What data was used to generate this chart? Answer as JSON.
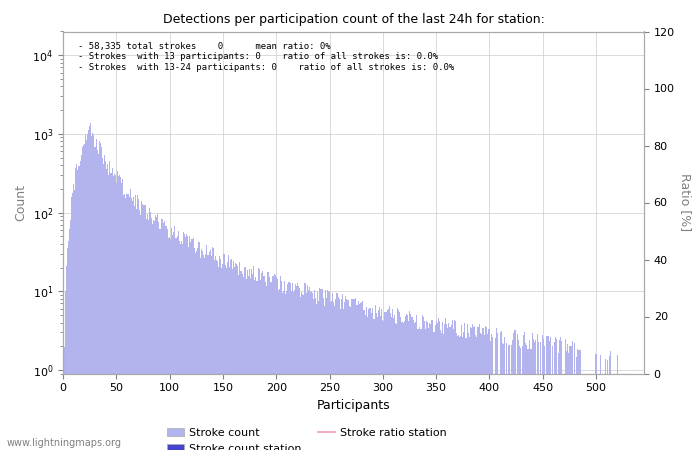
{
  "title": "Detections per participation count of the last 24h for station:",
  "xlabel": "Participants",
  "ylabel_left": "Count",
  "ylabel_right": "Ratio [%]",
  "annotation_lines": [
    "- 58,335 total strokes    0      mean ratio: 0%",
    "- Strokes  with 13 participants: 0    ratio of all strokes is: 0.0%",
    "- Strokes  with 13-24 participants: 0    ratio of all strokes is: 0.0%"
  ],
  "bar_color": "#b3b3ee",
  "station_bar_color": "#4444cc",
  "ratio_line_color": "#ee99bb",
  "background_color": "#ffffff",
  "grid_color": "#cccccc",
  "watermark": "www.lightningmaps.org",
  "xlim": [
    0,
    545
  ],
  "xticks": [
    0,
    50,
    100,
    150,
    200,
    250,
    300,
    350,
    400,
    450,
    500
  ],
  "ylim_right": [
    0,
    120
  ],
  "yticks_right": [
    0,
    20,
    40,
    60,
    80,
    100,
    120
  ],
  "legend_entries": [
    "Stroke count",
    "Stroke count station",
    "Stroke ratio station"
  ],
  "figsize": [
    7.0,
    4.5
  ],
  "dpi": 100
}
